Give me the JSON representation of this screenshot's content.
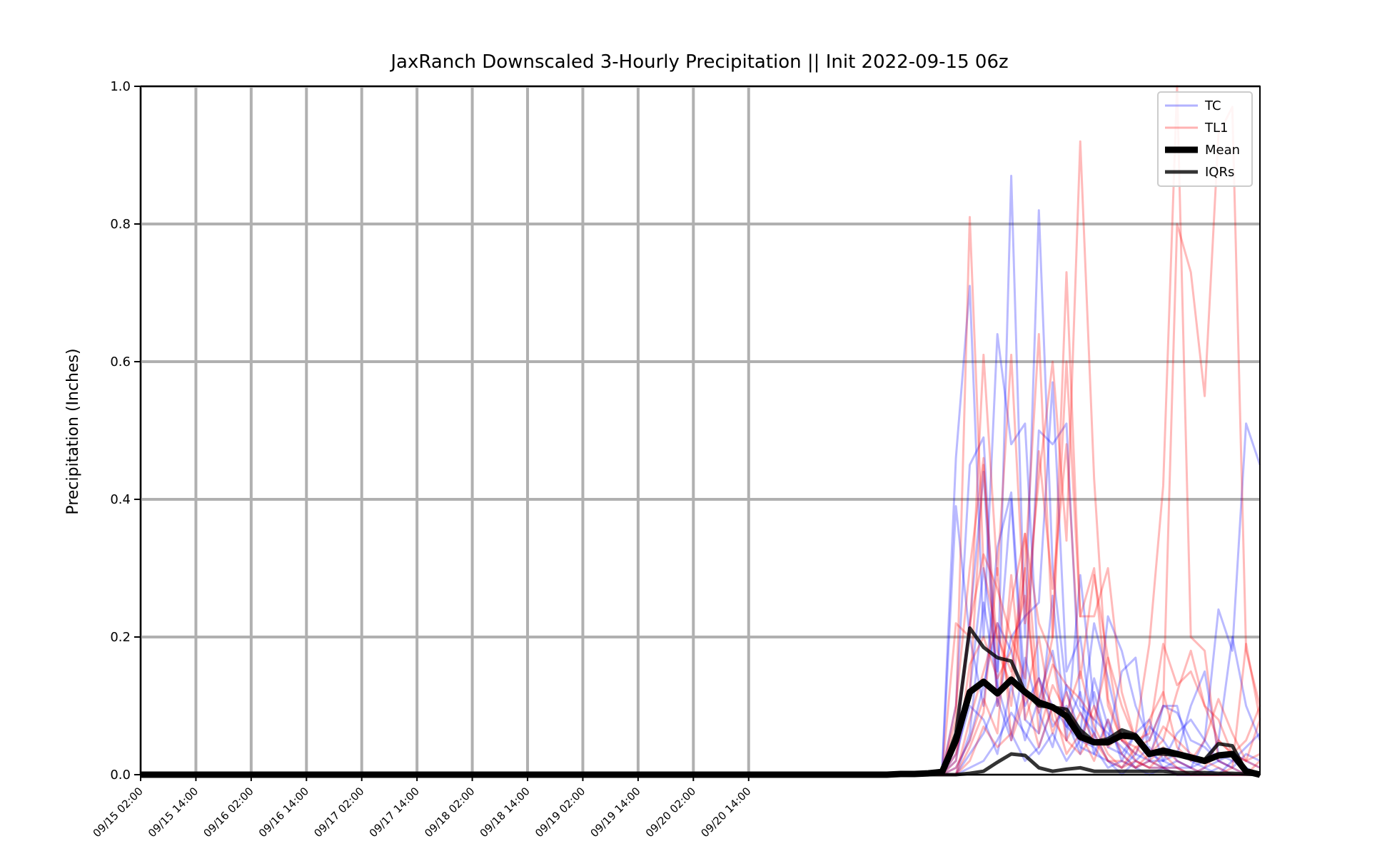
{
  "chart_data": {
    "type": "line",
    "title": "JaxRanch Downscaled 3-Hourly Precipitation || Init 2022-09-15 06z",
    "xlabel": "",
    "ylabel": "Precipitation (Inches)",
    "ylim": [
      0.0,
      1.0
    ],
    "yticks": [
      "0.0",
      "0.2",
      "0.4",
      "0.6",
      "0.8",
      "1.0"
    ],
    "xticks": [
      "09/15 02:00",
      "09/15 14:00",
      "09/16 02:00",
      "09/16 14:00",
      "09/17 02:00",
      "09/17 14:00",
      "09/18 02:00",
      "09/18 14:00",
      "09/19 02:00",
      "09/19 14:00",
      "09/20 02:00",
      "09/20 14:00"
    ],
    "x_start": "09/15 02:00",
    "x_step_hours": 3,
    "x_end": "09/21 00:00",
    "grid": true,
    "legend_position": "top-right",
    "legend": [
      "TC",
      "TL1",
      "Mean",
      "IQRs"
    ],
    "colors": {
      "TC": "#0000ff",
      "TL1": "#ff0000",
      "Mean": "#000000",
      "IQRs": "#000000",
      "grid": "#b0b0b0"
    },
    "mean": [
      0,
      0,
      0,
      0,
      0,
      0,
      0,
      0,
      0,
      0,
      0,
      0,
      0,
      0,
      0,
      0,
      0,
      0,
      0,
      0,
      0,
      0,
      0,
      0,
      0,
      0,
      0,
      0,
      0,
      0,
      0,
      0,
      0,
      0,
      0,
      0,
      0,
      0,
      0,
      0,
      0,
      0,
      0,
      0,
      0,
      0,
      0,
      0,
      0,
      0,
      0,
      0,
      0,
      0,
      0,
      0.001,
      0.001,
      0.002,
      0.004,
      0.05,
      0.12,
      0.135,
      0.118,
      0.138,
      0.12,
      0.105,
      0.098,
      0.085,
      0.055,
      0.047,
      0.047,
      0.057,
      0.055,
      0.03,
      0.035,
      0.03,
      0.025,
      0.02,
      0.028,
      0.03,
      0.005,
      0.0
    ],
    "iqr_upper": [
      0,
      0,
      0,
      0,
      0,
      0,
      0,
      0,
      0,
      0,
      0,
      0,
      0,
      0,
      0,
      0,
      0,
      0,
      0,
      0,
      0,
      0,
      0,
      0,
      0,
      0,
      0,
      0,
      0,
      0,
      0,
      0,
      0,
      0,
      0,
      0,
      0,
      0,
      0,
      0,
      0,
      0,
      0,
      0,
      0,
      0,
      0,
      0,
      0,
      0,
      0,
      0,
      0,
      0,
      0,
      0.001,
      0.001,
      0.002,
      0.005,
      0.06,
      0.213,
      0.185,
      0.17,
      0.165,
      0.12,
      0.1,
      0.098,
      0.095,
      0.065,
      0.048,
      0.052,
      0.065,
      0.058,
      0.03,
      0.03,
      0.028,
      0.025,
      0.022,
      0.045,
      0.042,
      0.005,
      0.0
    ],
    "iqr_lower": [
      0,
      0,
      0,
      0,
      0,
      0,
      0,
      0,
      0,
      0,
      0,
      0,
      0,
      0,
      0,
      0,
      0,
      0,
      0,
      0,
      0,
      0,
      0,
      0,
      0,
      0,
      0,
      0,
      0,
      0,
      0,
      0,
      0,
      0,
      0,
      0,
      0,
      0,
      0,
      0,
      0,
      0,
      0,
      0,
      0,
      0,
      0,
      0,
      0,
      0,
      0,
      0,
      0,
      0,
      0,
      0,
      0,
      0,
      0,
      0,
      0.002,
      0.005,
      0.018,
      0.03,
      0.028,
      0.01,
      0.005,
      0.008,
      0.01,
      0.005,
      0.005,
      0.005,
      0.005,
      0.005,
      0.005,
      0.003,
      0.003,
      0.003,
      0.002,
      0.002,
      0.001,
      0.0
    ],
    "series": [
      {
        "group": "TC",
        "start_index": 55,
        "values": [
          0.002,
          0.004,
          0.004,
          0.006,
          0.46,
          0.71,
          0.2,
          0.64,
          0.48,
          0.51,
          0.14,
          0.1,
          0.07,
          0.05,
          0.12,
          0.04,
          0.03,
          0.06,
          0.03,
          0.02,
          0.01,
          0.01,
          0.02,
          0.05,
          0.2,
          0.1,
          0.05,
          0.03,
          0.02,
          0.01,
          0.0
        ]
      },
      {
        "group": "TC",
        "start_index": 55,
        "values": [
          0.001,
          0.002,
          0.002,
          0.004,
          0.1,
          0.45,
          0.49,
          0.12,
          0.87,
          0.2,
          0.82,
          0.3,
          0.12,
          0.06,
          0.22,
          0.14,
          0.05,
          0.03,
          0.02,
          0.01,
          0.01,
          0.0,
          0.01,
          0.02,
          0.03,
          0.02,
          0.01,
          0.0,
          0.0,
          0.0,
          0.0
        ]
      },
      {
        "group": "TC",
        "start_index": 55,
        "values": [
          0.0,
          0.0,
          0.001,
          0.003,
          0.39,
          0.2,
          0.1,
          0.33,
          0.41,
          0.12,
          0.5,
          0.48,
          0.51,
          0.1,
          0.08,
          0.06,
          0.04,
          0.02,
          0.01,
          0.01,
          0.02,
          0.01,
          0.05,
          0.24,
          0.18,
          0.51,
          0.45,
          0.1,
          0.23,
          0.25,
          0.01
        ]
      },
      {
        "group": "TC",
        "start_index": 55,
        "values": [
          0.0,
          0.0,
          0.0,
          0.002,
          0.05,
          0.22,
          0.44,
          0.1,
          0.2,
          0.23,
          0.25,
          0.57,
          0.15,
          0.2,
          0.05,
          0.23,
          0.18,
          0.1,
          0.05,
          0.1,
          0.09,
          0.05,
          0.04,
          0.02,
          0.01,
          0.03,
          0.02,
          0.04,
          0.05,
          0.14,
          0.01
        ]
      },
      {
        "group": "TC",
        "start_index": 55,
        "values": [
          0.0,
          0.0,
          0.0,
          0.001,
          0.02,
          0.12,
          0.3,
          0.15,
          0.4,
          0.08,
          0.06,
          0.26,
          0.05,
          0.29,
          0.1,
          0.05,
          0.15,
          0.17,
          0.02,
          0.1,
          0.1,
          0.02,
          0.01,
          0.0,
          0.0,
          0.0,
          0.0,
          0.01,
          0.02,
          0.06,
          0.0
        ]
      },
      {
        "group": "TC",
        "start_index": 55,
        "values": [
          0.0,
          0.0,
          0.0,
          0.0,
          0.01,
          0.05,
          0.13,
          0.22,
          0.18,
          0.1,
          0.14,
          0.07,
          0.1,
          0.04,
          0.03,
          0.08,
          0.02,
          0.06,
          0.08,
          0.02,
          0.03,
          0.1,
          0.15,
          0.03,
          0.02,
          0.01,
          0.0,
          0.0,
          0.0,
          0.0,
          0.0
        ]
      },
      {
        "group": "TC",
        "start_index": 55,
        "values": [
          0.0,
          0.0,
          0.0,
          0.0,
          0.0,
          0.03,
          0.06,
          0.11,
          0.05,
          0.17,
          0.09,
          0.04,
          0.13,
          0.09,
          0.06,
          0.02,
          0.01,
          0.03,
          0.07,
          0.05,
          0.02,
          0.01,
          0.0,
          0.0,
          0.02,
          0.04,
          0.06,
          0.03,
          0.09,
          0.06,
          0.02
        ]
      },
      {
        "group": "TC",
        "start_index": 55,
        "values": [
          0.0,
          0.0,
          0.0,
          0.0,
          0.0,
          0.01,
          0.02,
          0.05,
          0.09,
          0.06,
          0.03,
          0.06,
          0.02,
          0.05,
          0.04,
          0.01,
          0.02,
          0.01,
          0.0,
          0.01,
          0.0,
          0.0,
          0.0,
          0.0,
          0.0,
          0.0,
          0.0,
          0.0,
          0.0,
          0.0,
          0.0
        ]
      },
      {
        "group": "TC",
        "start_index": 55,
        "values": [
          0.0,
          0.0,
          0.0,
          0.0,
          0.03,
          0.1,
          0.08,
          0.03,
          0.13,
          0.05,
          0.11,
          0.18,
          0.07,
          0.12,
          0.03,
          0.02,
          0.0,
          0.02,
          0.04,
          0.01,
          0.0,
          0.0,
          0.0,
          0.01,
          0.0,
          0.0,
          0.0,
          0.0,
          0.0,
          0.0,
          0.0
        ]
      },
      {
        "group": "TC",
        "start_index": 55,
        "values": [
          0.0,
          0.0,
          0.0,
          0.0,
          0.0,
          0.06,
          0.25,
          0.13,
          0.06,
          0.02,
          0.04,
          0.1,
          0.08,
          0.03,
          0.14,
          0.07,
          0.03,
          0.01,
          0.02,
          0.02,
          0.06,
          0.08,
          0.05,
          0.02,
          0.01,
          0.0,
          0.0,
          0.0,
          0.0,
          0.0,
          0.0
        ]
      },
      {
        "group": "TL1",
        "start_index": 55,
        "values": [
          0.0,
          0.001,
          0.002,
          0.004,
          0.08,
          0.81,
          0.3,
          0.2,
          0.15,
          0.3,
          0.64,
          0.2,
          0.6,
          0.23,
          0.3,
          0.1,
          0.05,
          0.04,
          0.05,
          0.1,
          0.8,
          0.73,
          0.55,
          0.93,
          0.97,
          0.18,
          0.1,
          0.05,
          0.02,
          0.0,
          0.0
        ]
      },
      {
        "group": "TL1",
        "start_index": 55,
        "values": [
          0.0,
          0.0,
          0.001,
          0.003,
          0.22,
          0.2,
          0.61,
          0.29,
          0.61,
          0.22,
          0.43,
          0.6,
          0.34,
          0.92,
          0.43,
          0.11,
          0.05,
          0.06,
          0.19,
          0.42,
          1.0,
          0.2,
          0.18,
          0.02,
          0.01,
          0.19,
          0.08,
          0.07,
          0.02,
          0.01,
          0.0
        ]
      },
      {
        "group": "TL1",
        "start_index": 55,
        "values": [
          0.0,
          0.0,
          0.0,
          0.002,
          0.1,
          0.3,
          0.46,
          0.1,
          0.25,
          0.35,
          0.1,
          0.2,
          0.73,
          0.23,
          0.23,
          0.3,
          0.12,
          0.05,
          0.03,
          0.05,
          0.12,
          0.18,
          0.1,
          0.05,
          0.03,
          0.05,
          0.1,
          0.03,
          0.01,
          0.0,
          0.0
        ]
      },
      {
        "group": "TL1",
        "start_index": 55,
        "values": [
          0.0,
          0.0,
          0.0,
          0.001,
          0.05,
          0.22,
          0.32,
          0.27,
          0.2,
          0.14,
          0.47,
          0.27,
          0.48,
          0.14,
          0.29,
          0.17,
          0.1,
          0.05,
          0.06,
          0.19,
          0.13,
          0.15,
          0.1,
          0.08,
          0.03,
          0.02,
          0.08,
          0.05,
          0.13,
          0.17,
          0.01
        ]
      },
      {
        "group": "TL1",
        "start_index": 55,
        "values": [
          0.0,
          0.0,
          0.0,
          0.0,
          0.03,
          0.12,
          0.45,
          0.18,
          0.13,
          0.35,
          0.22,
          0.17,
          0.05,
          0.09,
          0.05,
          0.02,
          0.02,
          0.01,
          0.03,
          0.07,
          0.05,
          0.03,
          0.02,
          0.01,
          0.0,
          0.0,
          0.02,
          0.01,
          0.0,
          0.0,
          0.0
        ]
      },
      {
        "group": "TL1",
        "start_index": 55,
        "values": [
          0.0,
          0.0,
          0.0,
          0.0,
          0.0,
          0.08,
          0.15,
          0.22,
          0.1,
          0.3,
          0.06,
          0.13,
          0.09,
          0.15,
          0.07,
          0.03,
          0.01,
          0.02,
          0.01,
          0.03,
          0.01,
          0.0,
          0.01,
          0.05,
          0.03,
          0.02,
          0.01,
          0.08,
          0.12,
          0.09,
          0.02
        ]
      },
      {
        "group": "TL1",
        "start_index": 55,
        "values": [
          0.0,
          0.0,
          0.0,
          0.0,
          0.01,
          0.05,
          0.11,
          0.06,
          0.29,
          0.08,
          0.14,
          0.06,
          0.12,
          0.05,
          0.1,
          0.04,
          0.06,
          0.02,
          0.01,
          0.01,
          0.0,
          0.0,
          0.0,
          0.0,
          0.0,
          0.0,
          0.0,
          0.0,
          0.0,
          0.0,
          0.0
        ]
      },
      {
        "group": "TL1",
        "start_index": 55,
        "values": [
          0.0,
          0.0,
          0.0,
          0.0,
          0.0,
          0.02,
          0.07,
          0.04,
          0.06,
          0.12,
          0.04,
          0.1,
          0.03,
          0.06,
          0.02,
          0.08,
          0.03,
          0.01,
          0.02,
          0.04,
          0.02,
          0.01,
          0.0,
          0.0,
          0.01,
          0.0,
          0.0,
          0.0,
          0.0,
          0.0,
          0.0
        ]
      },
      {
        "group": "TL1",
        "start_index": 55,
        "values": [
          0.0,
          0.0,
          0.0,
          0.0,
          0.02,
          0.16,
          0.2,
          0.14,
          0.18,
          0.26,
          0.09,
          0.16,
          0.13,
          0.11,
          0.08,
          0.17,
          0.05,
          0.03,
          0.08,
          0.12,
          0.04,
          0.02,
          0.05,
          0.11,
          0.06,
          0.02,
          0.03,
          0.01,
          0.0,
          0.0,
          0.0
        ]
      },
      {
        "group": "TL1",
        "start_index": 55,
        "values": [
          0.0,
          0.0,
          0.0,
          0.0,
          0.0,
          0.04,
          0.09,
          0.3,
          0.05,
          0.11,
          0.2,
          0.08,
          0.05,
          0.03,
          0.06,
          0.02,
          0.01,
          0.04,
          0.02,
          0.01,
          0.01,
          0.0,
          0.0,
          0.0,
          0.0,
          0.0,
          0.0,
          0.0,
          0.0,
          0.0,
          0.0
        ]
      }
    ]
  }
}
